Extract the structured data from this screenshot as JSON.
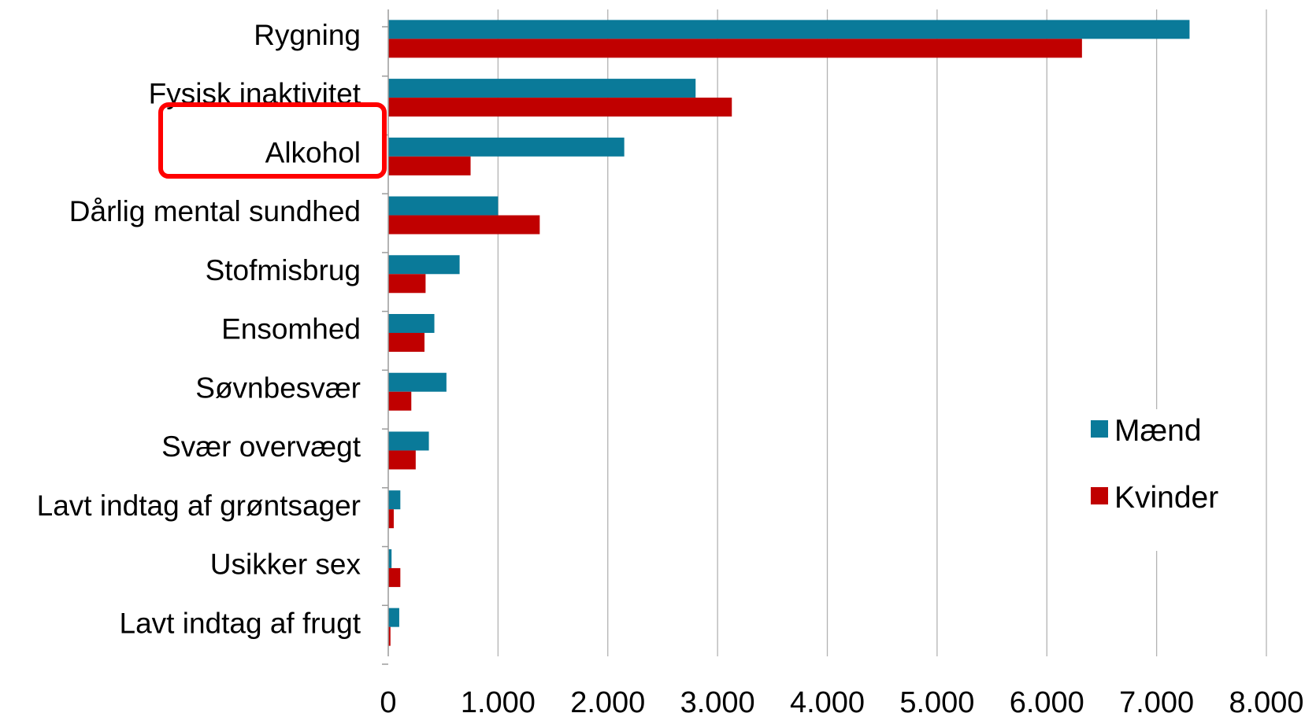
{
  "chart_data": {
    "type": "bar",
    "orientation": "horizontal",
    "categories": [
      "Rygning",
      "Fysisk inaktivitet",
      "Alkohol",
      "Dårlig mental sundhed",
      "Stofmisbrug",
      "Ensomhed",
      "Søvnbesvær",
      "Svær overvægt",
      "Lavt indtag af grøntsager",
      "Usikker sex",
      "Lavt indtag af frugt"
    ],
    "series": [
      {
        "name": "Mænd",
        "color": "#0a7a99",
        "values": [
          7300,
          2800,
          2150,
          1000,
          650,
          420,
          530,
          370,
          110,
          30,
          100
        ]
      },
      {
        "name": "Kvinder",
        "color": "#c00000",
        "values": [
          6320,
          3130,
          750,
          1380,
          340,
          330,
          210,
          250,
          50,
          110,
          20
        ]
      }
    ],
    "xlim": [
      0,
      8000
    ],
    "x_ticks": [
      0,
      1000,
      2000,
      3000,
      4000,
      5000,
      6000,
      7000,
      8000
    ],
    "x_tick_labels": [
      "0",
      "1.000",
      "2.000",
      "3.000",
      "4.000",
      "5.000",
      "6.000",
      "7.000",
      "8.000"
    ],
    "grid": "vertical",
    "legend": "bottom-right",
    "highlighted_category": "Alkohol",
    "highlight_color": "#ff0000"
  }
}
